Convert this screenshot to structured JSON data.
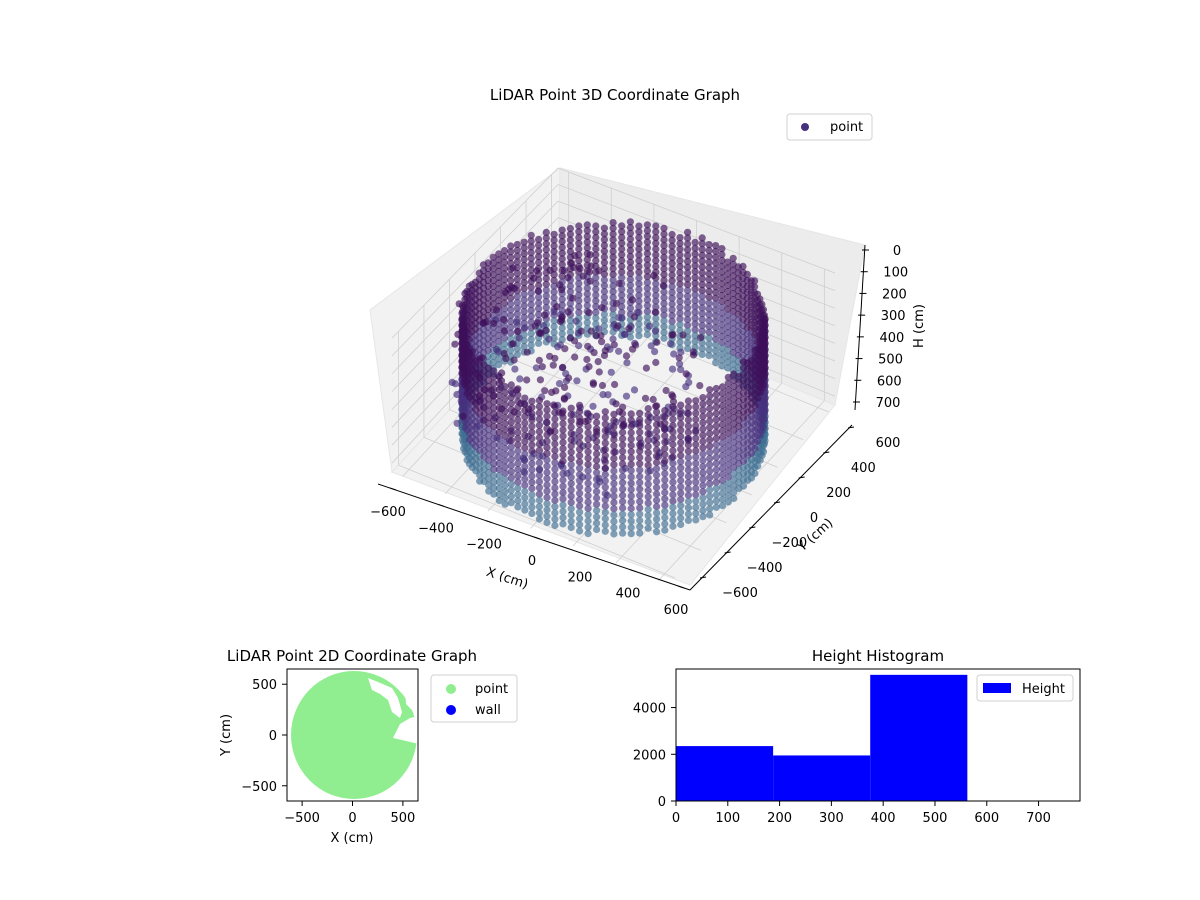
{
  "colors": {
    "point3d": "#46317e",
    "point3d_dark": "#3e0f5b",
    "point3d_light": "#3f6f92",
    "point2d": "#90ee90",
    "wall": "#0000ff",
    "hist": "#0000ff",
    "pane": "#f2f2f2",
    "grid": "#cfcfcf"
  },
  "chart_data": [
    {
      "type": "scatter",
      "projection": "3d",
      "title": "LiDAR Point 3D Coordinate Graph",
      "xlabel": "X (cm)",
      "ylabel": "Y (cm)",
      "zlabel": "H (cm)",
      "xticks": [
        "−600",
        "−400",
        "−200",
        "0",
        "200",
        "400",
        "600"
      ],
      "yticks": [
        "−600",
        "−400",
        "−200",
        "0",
        "200",
        "400",
        "600"
      ],
      "zticks": [
        "0",
        "100",
        "200",
        "300",
        "400",
        "500",
        "600",
        "700"
      ],
      "xlim": [
        -650,
        650
      ],
      "ylim": [
        -650,
        650
      ],
      "zlim": [
        750,
        0
      ],
      "zaxis_inverted": true,
      "series": [
        {
          "name": "point",
          "shape": "cylindrical wall of points, radius ~600 cm, heights 0–750 cm, interior cluster near center"
        }
      ],
      "legend_position": "top-right",
      "grid": true
    },
    {
      "type": "scatter",
      "title": "LiDAR Point 2D Coordinate Graph",
      "xlabel": "X (cm)",
      "ylabel": "Y (cm)",
      "xticks": [
        "−500",
        "0",
        "500"
      ],
      "yticks": [
        "500",
        "0",
        "−500"
      ],
      "xlim": [
        -650,
        650
      ],
      "ylim": [
        -650,
        650
      ],
      "series": [
        {
          "name": "point",
          "shape": "filled disk radius ~620 cm centered at origin with notches at upper right"
        },
        {
          "name": "wall",
          "values": []
        }
      ],
      "legend_position": "outside-right",
      "grid": false
    },
    {
      "type": "bar",
      "subtype": "histogram",
      "title": "Height Histogram",
      "xlabel": "",
      "ylabel": "",
      "bin_edges": [
        0,
        187.5,
        375,
        562.5,
        750
      ],
      "values": [
        2350,
        1950,
        5400,
        0
      ],
      "xticks": [
        "0",
        "100",
        "200",
        "300",
        "400",
        "500",
        "600",
        "700"
      ],
      "yticks": [
        "0",
        "2000",
        "4000"
      ],
      "xlim": [
        0,
        780
      ],
      "ylim": [
        0,
        5650
      ],
      "series": [
        {
          "name": "Height"
        }
      ],
      "legend_position": "top-right",
      "grid": false
    }
  ]
}
